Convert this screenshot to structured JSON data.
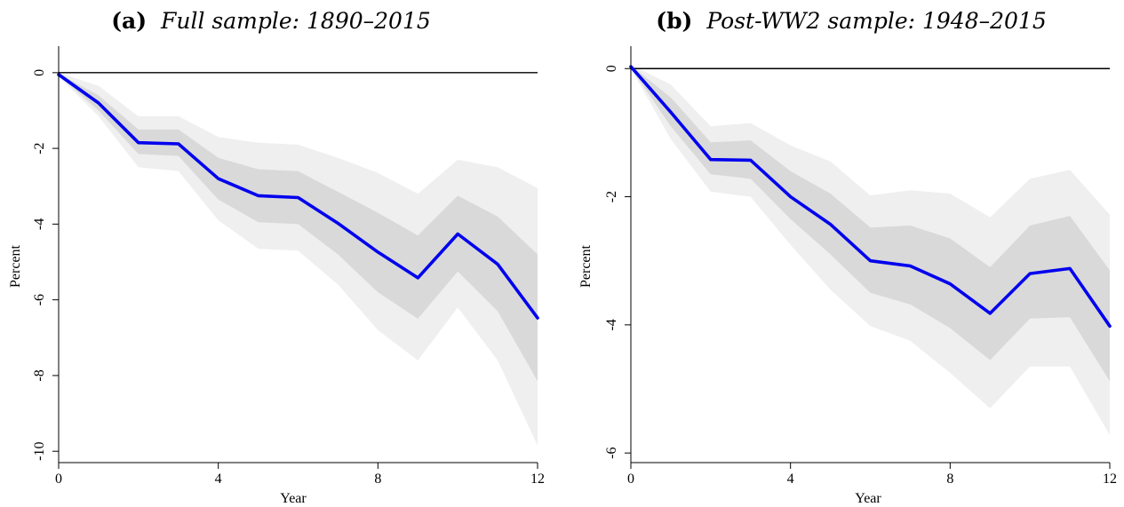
{
  "chart_data": [
    {
      "type": "line",
      "panel_label": "(a)",
      "title": "Full sample: 1890–2015",
      "xlabel": "Year",
      "ylabel": "Percent",
      "xlim": [
        0,
        12
      ],
      "ylim": [
        -10.3,
        0.7
      ],
      "xticks": [
        0,
        4,
        8,
        12
      ],
      "yticks": [
        0,
        -2,
        -4,
        -6,
        -8,
        -10
      ],
      "grid": false,
      "zero_line": true,
      "colors": {
        "line": "#0000ee",
        "band_outer": "#efefef",
        "band_inner": "#d9d9d9",
        "zero": "#000000"
      },
      "x": [
        0,
        1,
        2,
        3,
        4,
        5,
        6,
        7,
        8,
        9,
        10,
        11,
        12
      ],
      "series": [
        {
          "values": [
            -0.05,
            -0.8,
            -1.85,
            -1.88,
            -2.8,
            -3.25,
            -3.3,
            -3.98,
            -4.74,
            -5.42,
            -4.26,
            -5.06,
            -6.48
          ]
        }
      ],
      "bands": [
        {
          "level": "outer",
          "lower": [
            -0.1,
            -1.15,
            -2.5,
            -2.6,
            -3.9,
            -4.65,
            -4.7,
            -5.6,
            -6.8,
            -7.6,
            -6.2,
            -7.6,
            -9.85
          ],
          "upper": [
            0.0,
            -0.35,
            -1.15,
            -1.15,
            -1.7,
            -1.85,
            -1.9,
            -2.25,
            -2.65,
            -3.2,
            -2.3,
            -2.5,
            -3.05
          ]
        },
        {
          "level": "inner",
          "lower": [
            -0.08,
            -1.0,
            -2.15,
            -2.2,
            -3.35,
            -3.95,
            -4.0,
            -4.8,
            -5.8,
            -6.5,
            -5.25,
            -6.3,
            -8.15
          ],
          "upper": [
            -0.02,
            -0.6,
            -1.5,
            -1.5,
            -2.25,
            -2.55,
            -2.6,
            -3.15,
            -3.7,
            -4.3,
            -3.25,
            -3.8,
            -4.8
          ]
        }
      ]
    },
    {
      "type": "line",
      "panel_label": "(b)",
      "title": "Post-WW2 sample: 1948–2015",
      "xlabel": "Year",
      "ylabel": "Percent",
      "xlim": [
        0,
        12
      ],
      "ylim": [
        -6.15,
        0.35
      ],
      "xticks": [
        0,
        4,
        8,
        12
      ],
      "yticks": [
        0,
        -2,
        -4,
        -6
      ],
      "grid": false,
      "zero_line": true,
      "colors": {
        "line": "#0000ee",
        "band_outer": "#efefef",
        "band_inner": "#d9d9d9",
        "zero": "#000000"
      },
      "x": [
        0,
        1,
        2,
        3,
        4,
        5,
        6,
        7,
        8,
        9,
        10,
        11,
        12
      ],
      "series": [
        {
          "values": [
            0.03,
            -0.68,
            -1.42,
            -1.43,
            -2.0,
            -2.43,
            -3.0,
            -3.08,
            -3.36,
            -3.82,
            -3.2,
            -3.12,
            -4.02
          ]
        }
      ],
      "bands": [
        {
          "level": "outer",
          "lower": [
            0.0,
            -1.1,
            -1.92,
            -2.0,
            -2.75,
            -3.45,
            -4.02,
            -4.25,
            -4.75,
            -5.3,
            -4.65,
            -4.65,
            -5.72
          ],
          "upper": [
            0.06,
            -0.25,
            -0.9,
            -0.85,
            -1.2,
            -1.45,
            -1.98,
            -1.9,
            -1.95,
            -2.32,
            -1.72,
            -1.58,
            -2.28
          ]
        },
        {
          "level": "inner",
          "lower": [
            0.01,
            -0.9,
            -1.65,
            -1.72,
            -2.35,
            -2.9,
            -3.5,
            -3.68,
            -4.05,
            -4.55,
            -3.9,
            -3.88,
            -4.88
          ],
          "upper": [
            0.05,
            -0.45,
            -1.15,
            -1.12,
            -1.6,
            -1.95,
            -2.48,
            -2.45,
            -2.65,
            -3.1,
            -2.45,
            -2.3,
            -3.15
          ]
        }
      ]
    }
  ]
}
